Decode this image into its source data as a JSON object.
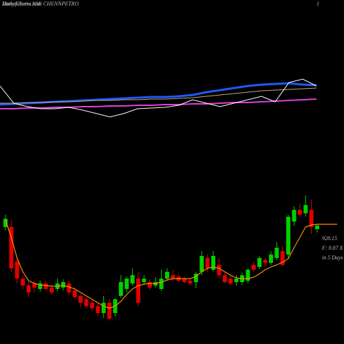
{
  "header": {
    "site": "MunafaSutra.com",
    "title": "Daily Charts NSE CHENNPETRO",
    "corner": "1"
  },
  "chart_data": [
    {
      "type": "line",
      "ylim": [
        0,
        500
      ],
      "series": [
        {
          "name": "Blue",
          "color": "#1e5bff",
          "width": 3,
          "values": [
            348,
            349,
            350,
            351,
            352,
            353,
            354,
            355,
            356,
            357,
            358,
            359,
            359,
            360,
            362,
            366,
            369,
            372,
            375,
            377,
            378,
            379,
            377,
            376
          ]
        },
        {
          "name": "Tan",
          "color": "#c8a878",
          "width": 1,
          "values": [
            350,
            350,
            351,
            351,
            352,
            352,
            353,
            354,
            354,
            355,
            355,
            356,
            356,
            357,
            358,
            360,
            362,
            364,
            366,
            368,
            369,
            370,
            371,
            372
          ]
        },
        {
          "name": "Magenta",
          "color": "#e040e0",
          "width": 2,
          "values": [
            342,
            342,
            343,
            343,
            344,
            344,
            345,
            345,
            346,
            346,
            347,
            347,
            348,
            348,
            349,
            349,
            350,
            351,
            351,
            352,
            353,
            354,
            355,
            356
          ]
        },
        {
          "name": "White",
          "color": "#ffffff",
          "width": 1,
          "values": [
            375,
            350,
            345,
            342,
            342,
            344,
            340,
            335,
            330,
            335,
            342,
            343,
            344,
            347,
            355,
            350,
            345,
            350,
            355,
            360,
            352,
            380,
            385,
            375
          ]
        }
      ]
    },
    {
      "type": "candlestick",
      "ylim": [
        580,
        1580
      ],
      "up_color": "#00d000",
      "down_color": "#e00000",
      "ma_color": "#ff8c00",
      "open": [
        920,
        920,
        820,
        770,
        750,
        756,
        740,
        756,
        744,
        740,
        744,
        756,
        736,
        720,
        710,
        700,
        690,
        670,
        700,
        670,
        720,
        740,
        756,
        770,
        760,
        760,
        750,
        740,
        770,
        780,
        776,
        770,
        764,
        760,
        790,
        830,
        796,
        810,
        780,
        770,
        760,
        760,
        764,
        810,
        804,
        824,
        816,
        830,
        850,
        840,
        936,
        970,
        960,
        970,
        914
      ],
      "high": [
        956,
        940,
        830,
        780,
        760,
        764,
        764,
        764,
        752,
        770,
        768,
        762,
        744,
        726,
        716,
        708,
        700,
        720,
        710,
        712,
        780,
        776,
        800,
        790,
        780,
        768,
        774,
        796,
        800,
        796,
        784,
        776,
        770,
        790,
        850,
        840,
        850,
        830,
        790,
        778,
        780,
        788,
        800,
        820,
        836,
        830,
        850,
        876,
        864,
        956,
        980,
        988,
        1012,
        1000,
        930
      ],
      "low": [
        910,
        790,
        756,
        740,
        716,
        730,
        732,
        736,
        722,
        734,
        736,
        722,
        712,
        686,
        684,
        676,
        660,
        656,
        648,
        660,
        714,
        730,
        750,
        690,
        752,
        738,
        744,
        734,
        764,
        764,
        760,
        756,
        750,
        742,
        780,
        790,
        790,
        770,
        756,
        750,
        750,
        752,
        756,
        790,
        798,
        806,
        810,
        824,
        806,
        830,
        924,
        950,
        950,
        900,
        904
      ],
      "close": [
        944,
        800,
        770,
        750,
        730,
        744,
        756,
        740,
        730,
        756,
        760,
        730,
        716,
        700,
        690,
        684,
        670,
        700,
        654,
        710,
        760,
        770,
        780,
        700,
        770,
        744,
        760,
        770,
        790,
        770,
        764,
        760,
        756,
        784,
        836,
        800,
        836,
        780,
        760,
        756,
        770,
        780,
        796,
        796,
        830,
        816,
        840,
        860,
        810,
        950,
        970,
        956,
        984,
        920,
        924
      ],
      "ma": [
        940,
        890,
        830,
        790,
        764,
        756,
        752,
        750,
        748,
        748,
        750,
        746,
        740,
        730,
        720,
        710,
        700,
        690,
        684,
        690,
        704,
        724,
        740,
        750,
        754,
        756,
        756,
        760,
        766,
        770,
        770,
        770,
        770,
        776,
        790,
        800,
        804,
        800,
        790,
        780,
        772,
        770,
        770,
        774,
        784,
        796,
        804,
        810,
        818,
        828,
        860,
        890,
        920,
        926,
        928
      ],
      "annotations": [
        "928.15",
        "F: 0.87 X",
        "in 5 Days"
      ]
    }
  ]
}
